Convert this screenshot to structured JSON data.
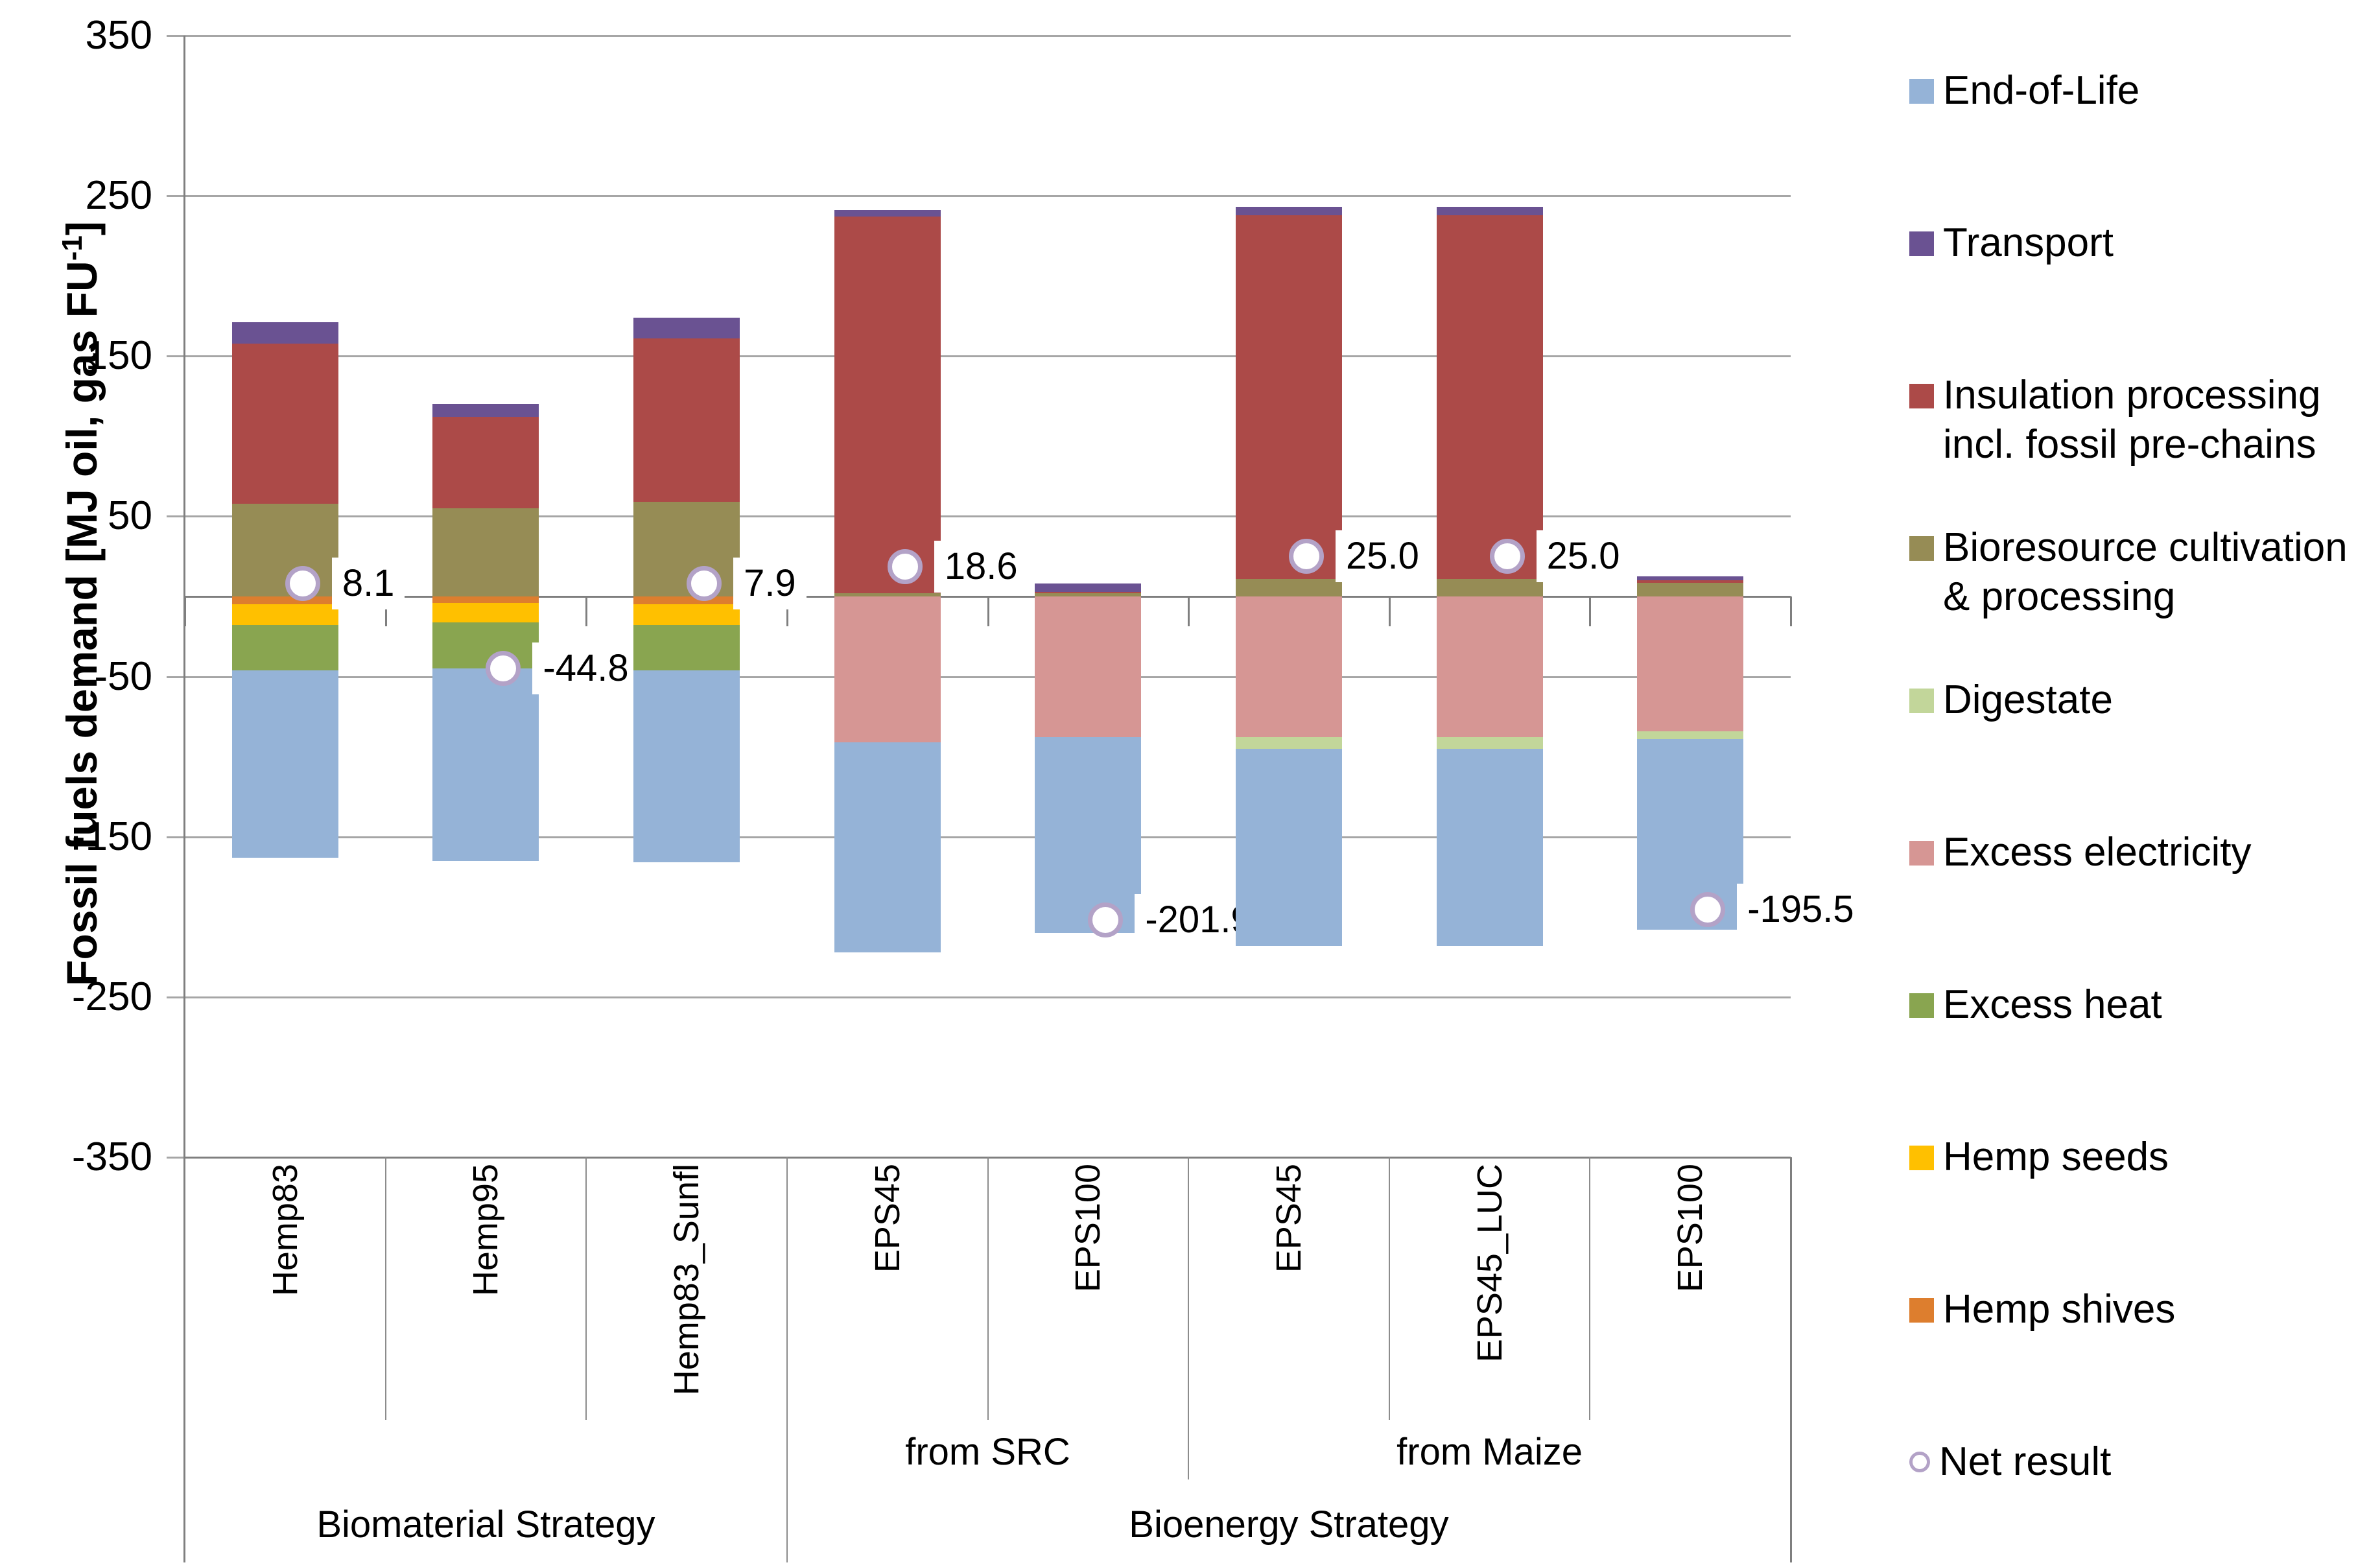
{
  "chart_data": {
    "type": "bar",
    "stacked": true,
    "title": "",
    "ylabel_parts": {
      "prefix": "Fossil fuels demand [MJ oil, gas FU",
      "superscript": "-1",
      "suffix": "]"
    },
    "ylim": [
      -350,
      350
    ],
    "yticks": [
      "350",
      "250",
      "150",
      "50",
      "-50",
      "-150",
      "-250",
      "-350"
    ],
    "ytick_values": [
      350,
      250,
      150,
      50,
      -50,
      -150,
      -250,
      -350
    ],
    "grid": true,
    "legend_position": "right",
    "axis_color": "#7F7F7F",
    "grid_color": "#A6A6A6",
    "series": [
      {
        "name": "End-of-Life",
        "color": "#95B3D7",
        "swatch": "square"
      },
      {
        "name": "Transport",
        "color": "#6A5292",
        "swatch": "square"
      },
      {
        "name": "Insulation processing incl. fossil pre-chains",
        "color": "#AC4A48",
        "swatch": "square"
      },
      {
        "name": "Bioresource cultivation & processing",
        "color": "#968C55",
        "swatch": "square"
      },
      {
        "name": "Digestate",
        "color": "#C2D69A",
        "swatch": "square"
      },
      {
        "name": "Excess electricity",
        "color": "#D69694",
        "swatch": "square"
      },
      {
        "name": "Excess heat",
        "color": "#89A550",
        "swatch": "square"
      },
      {
        "name": "Hemp seeds",
        "color": "#FFC000",
        "swatch": "square"
      },
      {
        "name": "Hemp shives",
        "color": "#DD7E2E",
        "swatch": "square"
      },
      {
        "name": "Net result",
        "color": "#B3A2C7",
        "swatch": "circle-outline"
      }
    ],
    "categories": [
      {
        "label": "Hemp83",
        "segments": [
          {
            "series": "Bioresource cultivation & processing",
            "value": 58
          },
          {
            "series": "Insulation processing incl. fossil pre-chains",
            "value": 100
          },
          {
            "series": "Transport",
            "value": 13
          },
          {
            "series": "Hemp shives",
            "value": -5
          },
          {
            "series": "Hemp seeds",
            "value": -13
          },
          {
            "series": "Excess heat",
            "value": -28
          },
          {
            "series": "End-of-Life",
            "value": -117
          }
        ],
        "net_result": 8.1,
        "net_label": "8.1"
      },
      {
        "label": "Hemp95",
        "segments": [
          {
            "series": "Bioresource cultivation & processing",
            "value": 55
          },
          {
            "series": "Insulation processing incl. fossil pre-chains",
            "value": 57
          },
          {
            "series": "Transport",
            "value": 8
          },
          {
            "series": "Hemp shives",
            "value": -4
          },
          {
            "series": "Hemp seeds",
            "value": -12
          },
          {
            "series": "Excess heat",
            "value": -29
          },
          {
            "series": "End-of-Life",
            "value": -120
          }
        ],
        "net_result": -44.8,
        "net_label": "-44.8"
      },
      {
        "label": "Hemp83_Sunfl",
        "segments": [
          {
            "series": "Bioresource cultivation & processing",
            "value": 59
          },
          {
            "series": "Insulation processing incl. fossil pre-chains",
            "value": 102
          },
          {
            "series": "Transport",
            "value": 13
          },
          {
            "series": "Hemp shives",
            "value": -5
          },
          {
            "series": "Hemp seeds",
            "value": -13
          },
          {
            "series": "Excess heat",
            "value": -28
          },
          {
            "series": "End-of-Life",
            "value": -120
          }
        ],
        "net_result": 7.9,
        "net_label": "7.9"
      },
      {
        "label": "EPS45",
        "segments": [
          {
            "series": "Bioresource cultivation & processing",
            "value": 2
          },
          {
            "series": "Insulation processing incl. fossil pre-chains",
            "value": 235
          },
          {
            "series": "Transport",
            "value": 4
          },
          {
            "series": "Excess electricity",
            "value": -91
          },
          {
            "series": "End-of-Life",
            "value": -131
          }
        ],
        "net_result": 18.6,
        "net_label": "18.6"
      },
      {
        "label": "EPS100",
        "segments": [
          {
            "series": "Bioresource cultivation & processing",
            "value": 2
          },
          {
            "series": "Insulation processing incl. fossil pre-chains",
            "value": 1
          },
          {
            "series": "Transport",
            "value": 5
          },
          {
            "series": "Excess electricity",
            "value": -88
          },
          {
            "series": "End-of-Life",
            "value": -122
          }
        ],
        "net_result": -201.9,
        "net_label": "-201.9"
      },
      {
        "label": "EPS45",
        "segments": [
          {
            "series": "Bioresource cultivation & processing",
            "value": 11
          },
          {
            "series": "Insulation processing incl. fossil pre-chains",
            "value": 227
          },
          {
            "series": "Transport",
            "value": 5
          },
          {
            "series": "Excess electricity",
            "value": -88
          },
          {
            "series": "Digestate",
            "value": -7
          },
          {
            "series": "End-of-Life",
            "value": -123
          }
        ],
        "net_result": 25.0,
        "net_label": "25.0"
      },
      {
        "label": "EPS45_LUC",
        "segments": [
          {
            "series": "Bioresource cultivation & processing",
            "value": 11
          },
          {
            "series": "Insulation processing incl. fossil pre-chains",
            "value": 227
          },
          {
            "series": "Transport",
            "value": 5
          },
          {
            "series": "Excess electricity",
            "value": -88
          },
          {
            "series": "Digestate",
            "value": -7
          },
          {
            "series": "End-of-Life",
            "value": -123
          }
        ],
        "net_result": 25.0,
        "net_label": "25.0"
      },
      {
        "label": "EPS100",
        "segments": [
          {
            "series": "Bioresource cultivation & processing",
            "value": 8.5
          },
          {
            "series": "Insulation processing incl. fossil pre-chains",
            "value": 1.5
          },
          {
            "series": "Transport",
            "value": 2.5
          },
          {
            "series": "Excess electricity",
            "value": -84
          },
          {
            "series": "Digestate",
            "value": -5
          },
          {
            "series": "End-of-Life",
            "value": -119
          }
        ],
        "net_result": -195.5,
        "net_label": "-195.5"
      }
    ],
    "groups_tier2": [
      {
        "label": "from SRC",
        "start": 3,
        "end": 4
      },
      {
        "label": "from Maize",
        "start": 5,
        "end": 7
      }
    ],
    "groups_tier3": [
      {
        "label": "Biomaterial Strategy",
        "start": 0,
        "end": 2
      },
      {
        "label": "Bioenergy Strategy",
        "start": 3,
        "end": 7
      }
    ]
  }
}
